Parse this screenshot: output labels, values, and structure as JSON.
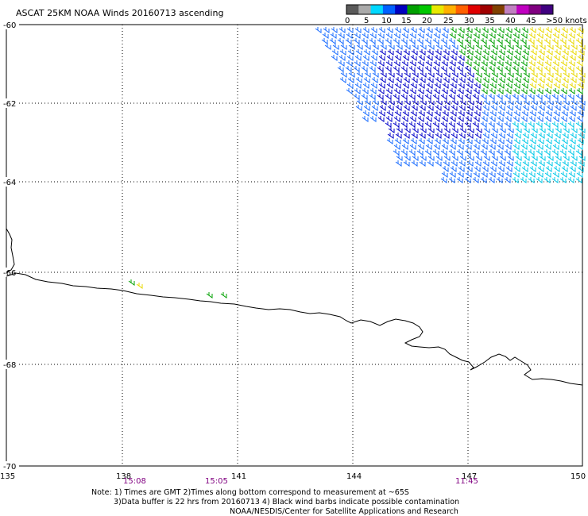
{
  "title": "ASCAT 25KM NOAA Winds 20160713 ascending",
  "legend": {
    "ticks": [
      "0",
      "5",
      "10",
      "15",
      "20",
      "25",
      "30",
      "35",
      "40",
      "45",
      ">50 knots"
    ],
    "colors": [
      "#5a5a5a",
      "#aaaaaa",
      "#00d8ff",
      "#0060ff",
      "#0000c0",
      "#00a000",
      "#00c800",
      "#e8e800",
      "#ffb000",
      "#ff6000",
      "#e00000",
      "#a00000",
      "#804000",
      "#c080c0",
      "#c000c0",
      "#800080",
      "#400080"
    ]
  },
  "axes": {
    "lat_labels": [
      "-60",
      "-62",
      "-64",
      "-66",
      "-68",
      "-70"
    ],
    "lon_labels": [
      "135",
      "138",
      "141",
      "144",
      "147",
      "150"
    ]
  },
  "times": [
    "15:08",
    "15:05",
    "11:45"
  ],
  "notes": [
    "Note: 1) Times are GMT 2)Times along bottom correspond to measurement at ~65S",
    "3)Data buffer is 22 hrs from 20160713 4) Black wind barbs indicate possible contamination",
    "NOAA/NESDIS/Center for Satellite Applications and Research"
  ]
}
